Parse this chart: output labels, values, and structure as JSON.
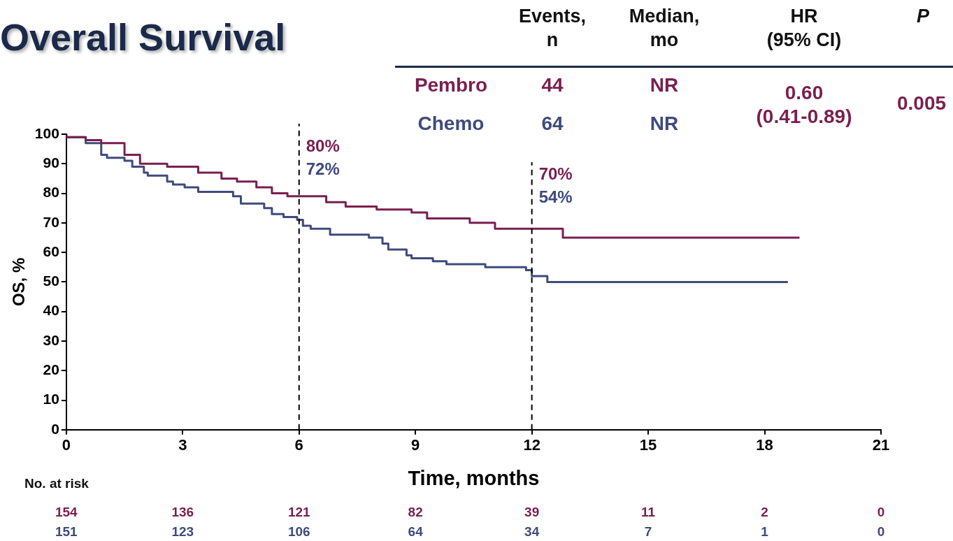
{
  "chart_data": {
    "type": "step",
    "title": "Overall Survival",
    "xlabel": "Time, months",
    "ylabel": "OS, %",
    "xlim": [
      0,
      21
    ],
    "xticks": [
      0,
      3,
      6,
      9,
      12,
      15,
      18,
      21
    ],
    "ylim": [
      0,
      100
    ],
    "yticks": [
      0,
      10,
      20,
      30,
      40,
      50,
      60,
      70,
      80,
      90,
      100
    ],
    "grid": false,
    "marker": "none",
    "line_style": "solid",
    "series": [
      {
        "name": "Pembro",
        "color": "#7a1f4f",
        "x": [
          0,
          0.5,
          0.9,
          1.5,
          1.9,
          2.6,
          3.4,
          4.0,
          4.4,
          4.9,
          5.3,
          5.7,
          6.7,
          7.2,
          8.0,
          8.9,
          9.3,
          10.4,
          11.05,
          12.8,
          13.4,
          18.9
        ],
        "values": [
          100,
          99,
          98,
          97,
          93,
          90,
          89,
          87,
          85,
          84,
          82,
          80,
          79,
          77,
          75.5,
          74.5,
          73.5,
          71.5,
          70,
          68,
          65,
          65
        ]
      },
      {
        "name": "Chemo",
        "color": "#3f4b7d",
        "x": [
          0,
          0.5,
          0.9,
          1.05,
          1.5,
          1.7,
          2.0,
          2.1,
          2.6,
          2.75,
          3.05,
          3.4,
          4.3,
          4.5,
          5.1,
          5.3,
          5.6,
          5.95,
          6.1,
          6.3,
          6.8,
          7.8,
          8.15,
          8.3,
          8.77,
          8.9,
          9.45,
          9.8,
          10.8,
          11.85,
          12.0,
          12.4,
          12.6,
          18.6
        ],
        "values": [
          100,
          99,
          97,
          93,
          92,
          91,
          89,
          87,
          86,
          84,
          83,
          82,
          80.5,
          79,
          76.5,
          75,
          73,
          72,
          71,
          69,
          68,
          66,
          65,
          63,
          61,
          59,
          58,
          57,
          56,
          55,
          54,
          52,
          50,
          50
        ]
      }
    ],
    "ref_lines": [
      {
        "axis": "x",
        "value": 6,
        "color": "#000000",
        "line_style": "dashed"
      },
      {
        "axis": "x",
        "value": 12,
        "color": "#000000",
        "line_style": "dashed"
      }
    ],
    "annotations": [
      "Events,\nn",
      "Median,\nmo",
      "HR\n(95% CI)",
      "P",
      "44",
      "NR",
      "64",
      "NR",
      "0.60\n(0.41-0.89)",
      "0.005",
      "No. at risk",
      "154",
      "136",
      "121",
      "82",
      "39",
      "11",
      "2",
      "0",
      "151",
      "123",
      "106",
      "64",
      "34",
      "7",
      "1",
      "0",
      "80%",
      "72%",
      "70%",
      "54%"
    ]
  }
}
